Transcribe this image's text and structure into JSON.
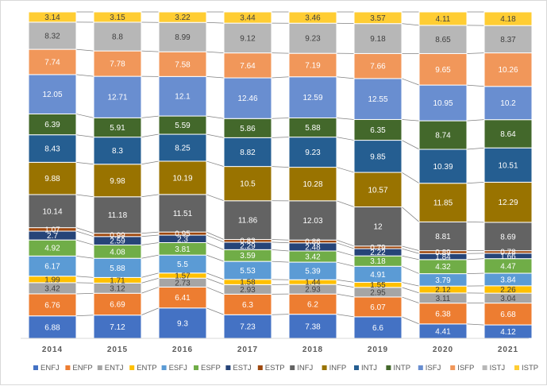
{
  "chart_data": {
    "type": "bar",
    "stacked": true,
    "normalized": true,
    "title": "",
    "xlabel": "",
    "ylabel": "",
    "categories": [
      "2014",
      "2015",
      "2016",
      "2017",
      "2018",
      "2019",
      "2020",
      "2021"
    ],
    "series": [
      {
        "name": "ENFJ",
        "color": "#4472c4",
        "values": [
          6.88,
          7.12,
          9.3,
          7.23,
          7.38,
          6.6,
          4.41,
          4.12
        ]
      },
      {
        "name": "ENFP",
        "color": "#ed7d31",
        "values": [
          6.76,
          6.69,
          6.41,
          6.3,
          6.2,
          6.07,
          6.38,
          6.68
        ]
      },
      {
        "name": "ENTJ",
        "color": "#a5a5a5",
        "values": [
          3.42,
          3.12,
          2.73,
          2.93,
          2.93,
          2.95,
          3.11,
          3.04
        ]
      },
      {
        "name": "ENTP",
        "color": "#ffc000",
        "values": [
          1.99,
          1.71,
          1.57,
          1.58,
          1.44,
          1.55,
          2.12,
          2.26
        ]
      },
      {
        "name": "ESFJ",
        "color": "#5b9bd5",
        "values": [
          6.17,
          5.88,
          5.5,
          5.53,
          5.39,
          4.91,
          3.79,
          3.84
        ]
      },
      {
        "name": "ESFP",
        "color": "#70ad47",
        "values": [
          4.92,
          4.08,
          3.81,
          3.59,
          3.42,
          3.18,
          4.32,
          4.47
        ]
      },
      {
        "name": "ESTJ",
        "color": "#264478",
        "values": [
          2.7,
          2.59,
          2.3,
          2.29,
          2.48,
          2.22,
          1.84,
          1.66
        ]
      },
      {
        "name": "ESTP",
        "color": "#9e480e",
        "values": [
          1.07,
          0.99,
          0.95,
          0.83,
          0.86,
          0.79,
          0.89,
          0.78
        ]
      },
      {
        "name": "INFJ",
        "color": "#636363",
        "values": [
          10.14,
          11.18,
          11.51,
          11.86,
          12.03,
          12,
          8.81,
          8.69
        ]
      },
      {
        "name": "INFP",
        "color": "#997300",
        "values": [
          9.88,
          9.98,
          10.19,
          10.5,
          10.28,
          10.57,
          11.85,
          12.29
        ]
      },
      {
        "name": "INTJ",
        "color": "#255e91",
        "values": [
          8.43,
          8.3,
          8.25,
          8.82,
          9.23,
          9.85,
          10.39,
          10.51
        ]
      },
      {
        "name": "INTP",
        "color": "#43682b",
        "values": [
          6.39,
          5.91,
          5.59,
          5.86,
          5.88,
          6.35,
          8.74,
          8.64
        ]
      },
      {
        "name": "ISFJ",
        "color": "#698ed0",
        "values": [
          12.05,
          12.71,
          12.1,
          12.46,
          12.59,
          12.55,
          10.95,
          10.2
        ]
      },
      {
        "name": "ISFP",
        "color": "#f1975a",
        "values": [
          7.74,
          7.78,
          7.58,
          7.64,
          7.19,
          7.66,
          9.65,
          10.26
        ]
      },
      {
        "name": "ISTJ",
        "color": "#b7b7b7",
        "values": [
          8.32,
          8.8,
          8.99,
          9.12,
          9.23,
          9.18,
          8.65,
          8.37
        ]
      },
      {
        "name": "ISTP",
        "color": "#ffcd33",
        "values": [
          3.14,
          3.15,
          3.22,
          3.44,
          3.46,
          3.57,
          4.11,
          4.18
        ]
      }
    ],
    "series_lines": true,
    "grid": false,
    "legend": "bottom"
  }
}
